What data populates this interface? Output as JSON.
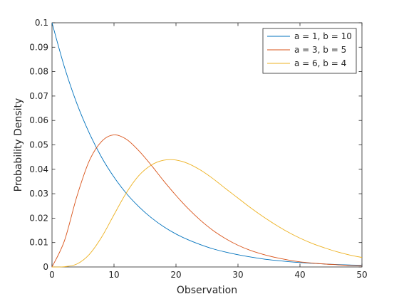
{
  "chart_data": {
    "type": "line",
    "xlabel": "Observation",
    "ylabel": "Probability Density",
    "xlim": [
      0,
      50
    ],
    "ylim": [
      0,
      0.1
    ],
    "x_ticks": [
      "0",
      "10",
      "20",
      "30",
      "40",
      "50"
    ],
    "y_ticks": [
      "0",
      "0.01",
      "0.02",
      "0.03",
      "0.04",
      "0.05",
      "0.06",
      "0.07",
      "0.08",
      "0.09",
      "0.1"
    ],
    "grid": false,
    "legend_position": "top-right",
    "series": [
      {
        "name": "a = 1, b = 10",
        "color": "#0072BD",
        "x": [
          0,
          2,
          4,
          6,
          8,
          10,
          12,
          14,
          16,
          18,
          20,
          22,
          24,
          26,
          28,
          30,
          32,
          34,
          36,
          38,
          40,
          42,
          44,
          46,
          48,
          50
        ],
        "y": [
          0.1,
          0.0819,
          0.067,
          0.0549,
          0.0449,
          0.0368,
          0.0301,
          0.0247,
          0.0202,
          0.0165,
          0.0135,
          0.0111,
          0.0091,
          0.0074,
          0.0061,
          0.005,
          0.0041,
          0.0033,
          0.0027,
          0.0022,
          0.0018,
          0.0015,
          0.0012,
          0.001,
          0.0008,
          0.0007
        ]
      },
      {
        "name": "a = 3, b = 5",
        "color": "#D95319",
        "x": [
          0,
          2,
          4,
          6,
          8,
          10,
          12,
          14,
          16,
          18,
          20,
          22,
          24,
          26,
          28,
          30,
          32,
          34,
          36,
          38,
          40,
          42,
          44,
          46,
          48,
          50
        ],
        "y": [
          0,
          0.0107,
          0.0288,
          0.0434,
          0.0514,
          0.0541,
          0.0523,
          0.0476,
          0.0417,
          0.0353,
          0.0293,
          0.0238,
          0.019,
          0.0149,
          0.0116,
          0.0089,
          0.0068,
          0.0052,
          0.0039,
          0.0029,
          0.0021,
          0.0016,
          0.0012,
          0.0009,
          0.0006,
          0.0005
        ]
      },
      {
        "name": "a = 6, b = 4",
        "color": "#EDB120",
        "x": [
          0,
          2,
          4,
          6,
          8,
          10,
          12,
          14,
          16,
          18,
          20,
          22,
          24,
          26,
          28,
          30,
          32,
          34,
          36,
          38,
          40,
          42,
          44,
          46,
          48,
          50
        ],
        "y": [
          0,
          0.0001,
          0.0012,
          0.0051,
          0.0122,
          0.0214,
          0.0304,
          0.0374,
          0.0417,
          0.0437,
          0.0438,
          0.0423,
          0.0396,
          0.0361,
          0.0321,
          0.0282,
          0.0243,
          0.0207,
          0.0174,
          0.0144,
          0.0118,
          0.0096,
          0.0078,
          0.0062,
          0.0049,
          0.0039
        ]
      }
    ]
  }
}
